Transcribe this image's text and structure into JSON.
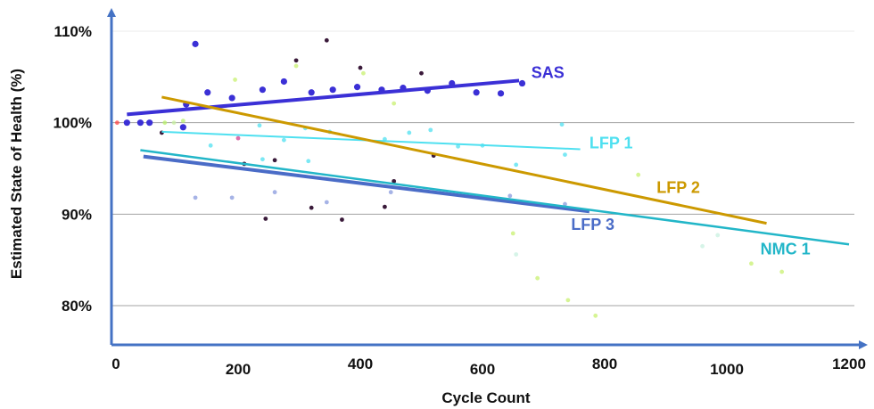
{
  "chart_data": {
    "type": "scatter",
    "xlabel": "Cycle Count",
    "ylabel": "Estimated State of Health (%)",
    "xlim": [
      0,
      1200
    ],
    "ylim": [
      76,
      114
    ],
    "x_ticks": [
      "0",
      "200",
      "400",
      "600",
      "800",
      "1000",
      "1200"
    ],
    "y_ticks": [
      {
        "value": 80,
        "label": "80%"
      },
      {
        "value": 90,
        "label": "90%"
      },
      {
        "value": 100,
        "label": "100%"
      },
      {
        "value": 110,
        "label": "110%"
      }
    ],
    "gridlines_y": [
      80,
      90,
      100,
      110
    ],
    "colors": {
      "axis": "#4472c4",
      "grid": "#8c8c8c",
      "SAS": "#3b30d6",
      "LFP1": "#4fe0f0",
      "LFP2": "#cc9900",
      "LFP3": "#4a6cc7",
      "NMC1": "#22b6c8"
    },
    "trend_lines": [
      {
        "name": "SAS",
        "x": [
          18,
          660
        ],
        "y": [
          100.9,
          104.6
        ],
        "color": "#3b30d6",
        "label_x": 680,
        "label_y": 104.9
      },
      {
        "name": "LFP 1",
        "x": [
          75,
          760
        ],
        "y": [
          99.0,
          97.1
        ],
        "color": "#4fe0f0",
        "label_x": 775,
        "label_y": 97.2
      },
      {
        "name": "LFP 2",
        "x": [
          75,
          1065
        ],
        "y": [
          102.8,
          89.0
        ],
        "color": "#cc9900",
        "label_x": 885,
        "label_y": 92.3
      },
      {
        "name": "LFP 3",
        "x": [
          45,
          775
        ],
        "y": [
          96.3,
          90.3
        ],
        "color": "#4a6cc7",
        "label_x": 745,
        "label_y": 88.3
      },
      {
        "name": "NMC 1",
        "x": [
          40,
          1200
        ],
        "y": [
          97.0,
          86.7
        ],
        "color": "#22b6c8",
        "label_x": 1055,
        "label_y": 85.6
      }
    ],
    "points": [
      {
        "x": 2,
        "y": 100,
        "c": "#ff4444"
      },
      {
        "x": 18,
        "y": 100,
        "c": "#3b30d6"
      },
      {
        "x": 40,
        "y": 100,
        "c": "#3b30d6"
      },
      {
        "x": 55,
        "y": 100,
        "c": "#3b30d6"
      },
      {
        "x": 80,
        "y": 100,
        "c": "#b8f06a"
      },
      {
        "x": 95,
        "y": 100,
        "c": "#c8f0a0"
      },
      {
        "x": 110,
        "y": 99.5,
        "c": "#3b30d6"
      },
      {
        "x": 115,
        "y": 102,
        "c": "#3b30d6"
      },
      {
        "x": 130,
        "y": 108.6,
        "c": "#3b30d6"
      },
      {
        "x": 150,
        "y": 103.3,
        "c": "#3b30d6"
      },
      {
        "x": 190,
        "y": 102.7,
        "c": "#3b30d6"
      },
      {
        "x": 240,
        "y": 103.6,
        "c": "#3b30d6"
      },
      {
        "x": 275,
        "y": 104.5,
        "c": "#3b30d6"
      },
      {
        "x": 320,
        "y": 103.3,
        "c": "#3b30d6"
      },
      {
        "x": 355,
        "y": 103.6,
        "c": "#3b30d6"
      },
      {
        "x": 395,
        "y": 103.9,
        "c": "#3b30d6"
      },
      {
        "x": 435,
        "y": 103.6,
        "c": "#3b30d6"
      },
      {
        "x": 470,
        "y": 103.8,
        "c": "#3b30d6"
      },
      {
        "x": 510,
        "y": 103.5,
        "c": "#3b30d6"
      },
      {
        "x": 550,
        "y": 104.3,
        "c": "#3b30d6"
      },
      {
        "x": 590,
        "y": 103.3,
        "c": "#3b30d6"
      },
      {
        "x": 630,
        "y": 103.2,
        "c": "#3b30d6"
      },
      {
        "x": 665,
        "y": 104.3,
        "c": "#3b30d6"
      },
      {
        "x": 345,
        "y": 109.0,
        "c": "#3a1a3a"
      },
      {
        "x": 295,
        "y": 106.8,
        "c": "#3a1a3a"
      },
      {
        "x": 400,
        "y": 106.0,
        "c": "#3a1a3a"
      },
      {
        "x": 500,
        "y": 105.4,
        "c": "#3a1a3a"
      },
      {
        "x": 295,
        "y": 106.2,
        "c": "#c8f070"
      },
      {
        "x": 195,
        "y": 104.7,
        "c": "#c8f070"
      },
      {
        "x": 405,
        "y": 105.4,
        "c": "#c8f070"
      },
      {
        "x": 455,
        "y": 102.1,
        "c": "#c8f070"
      },
      {
        "x": 110,
        "y": 100.2,
        "c": "#b8f06a"
      },
      {
        "x": 75,
        "y": 98.9,
        "c": "#3a1a3a"
      },
      {
        "x": 155,
        "y": 97.5,
        "c": "#4fe0f0"
      },
      {
        "x": 200,
        "y": 98.3,
        "c": "#d04090"
      },
      {
        "x": 235,
        "y": 99.7,
        "c": "#4fe0f0"
      },
      {
        "x": 275,
        "y": 98.1,
        "c": "#4fe0f0"
      },
      {
        "x": 310,
        "y": 99.4,
        "c": "#4fe0f0"
      },
      {
        "x": 350,
        "y": 99.0,
        "c": "#4fe0f0"
      },
      {
        "x": 440,
        "y": 98.2,
        "c": "#4fe0f0"
      },
      {
        "x": 480,
        "y": 98.9,
        "c": "#4fe0f0"
      },
      {
        "x": 515,
        "y": 99.2,
        "c": "#4fe0f0"
      },
      {
        "x": 560,
        "y": 97.4,
        "c": "#4fe0f0"
      },
      {
        "x": 600,
        "y": 97.5,
        "c": "#4fe0f0"
      },
      {
        "x": 655,
        "y": 95.4,
        "c": "#4fe0f0"
      },
      {
        "x": 730,
        "y": 99.8,
        "c": "#4fe0f0"
      },
      {
        "x": 735,
        "y": 96.5,
        "c": "#4fe0f0"
      },
      {
        "x": 210,
        "y": 95.5,
        "c": "#3a1a3a"
      },
      {
        "x": 260,
        "y": 95.9,
        "c": "#3a1a3a"
      },
      {
        "x": 240,
        "y": 96.0,
        "c": "#4fe0f0"
      },
      {
        "x": 315,
        "y": 95.8,
        "c": "#4fe0f0"
      },
      {
        "x": 455,
        "y": 93.6,
        "c": "#3a1a3a"
      },
      {
        "x": 520,
        "y": 96.4,
        "c": "#3a1a3a"
      },
      {
        "x": 130,
        "y": 91.8,
        "c": "#8899dd"
      },
      {
        "x": 190,
        "y": 91.8,
        "c": "#8899dd"
      },
      {
        "x": 260,
        "y": 92.4,
        "c": "#8899dd"
      },
      {
        "x": 345,
        "y": 91.3,
        "c": "#8899dd"
      },
      {
        "x": 450,
        "y": 92.4,
        "c": "#8899dd"
      },
      {
        "x": 645,
        "y": 92.0,
        "c": "#8899dd"
      },
      {
        "x": 735,
        "y": 91.1,
        "c": "#8899dd"
      },
      {
        "x": 245,
        "y": 89.5,
        "c": "#3a1a3a"
      },
      {
        "x": 320,
        "y": 90.7,
        "c": "#3a1a3a"
      },
      {
        "x": 370,
        "y": 89.4,
        "c": "#3a1a3a"
      },
      {
        "x": 440,
        "y": 90.8,
        "c": "#3a1a3a"
      },
      {
        "x": 650,
        "y": 87.9,
        "c": "#c8f070"
      },
      {
        "x": 690,
        "y": 83.0,
        "c": "#c8f070"
      },
      {
        "x": 740,
        "y": 80.6,
        "c": "#c8f070"
      },
      {
        "x": 785,
        "y": 78.9,
        "c": "#c8f070"
      },
      {
        "x": 655,
        "y": 85.6,
        "c": "#c8f0e0"
      },
      {
        "x": 960,
        "y": 86.5,
        "c": "#c8f0e0"
      },
      {
        "x": 1040,
        "y": 84.6,
        "c": "#c8f070"
      },
      {
        "x": 1090,
        "y": 83.7,
        "c": "#c8f070"
      },
      {
        "x": 855,
        "y": 94.3,
        "c": "#c8f070"
      },
      {
        "x": 985,
        "y": 87.7,
        "c": "#c8f0e0"
      }
    ]
  }
}
